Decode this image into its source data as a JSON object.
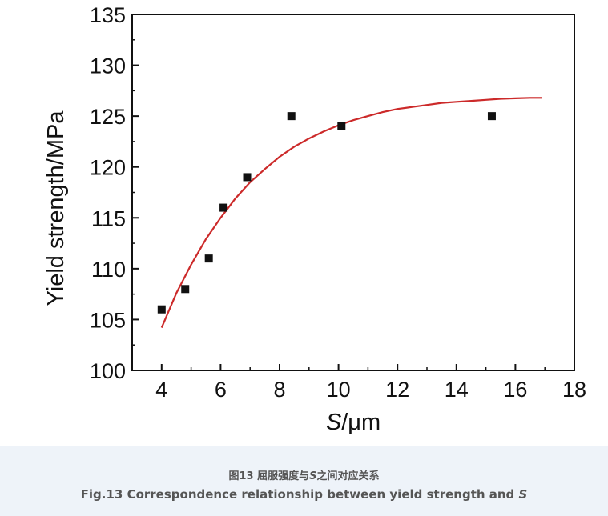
{
  "chart_data": {
    "type": "scatter",
    "xlabel_italic": "S",
    "xlabel_rest": "/μm",
    "ylabel": "Yield strength/MPa",
    "xlim": [
      3,
      18
    ],
    "ylim": [
      100,
      135
    ],
    "x_ticks": [
      "4",
      "6",
      "8",
      "10",
      "12",
      "14",
      "16",
      "18"
    ],
    "y_ticks": [
      "100",
      "105",
      "110",
      "115",
      "120",
      "125",
      "130",
      "135"
    ],
    "grid": false,
    "marker_color": "#111111",
    "fit_color": "#cc2a2a",
    "points": [
      {
        "x": 4.0,
        "y": 106
      },
      {
        "x": 4.8,
        "y": 108
      },
      {
        "x": 5.6,
        "y": 111
      },
      {
        "x": 6.1,
        "y": 116
      },
      {
        "x": 6.9,
        "y": 119
      },
      {
        "x": 8.4,
        "y": 125
      },
      {
        "x": 10.1,
        "y": 124
      },
      {
        "x": 15.2,
        "y": 125
      }
    ],
    "fit_curve": {
      "x": [
        4.0,
        4.5,
        5.0,
        5.5,
        6.0,
        6.5,
        7.0,
        7.5,
        8.0,
        8.5,
        9.0,
        9.5,
        10.0,
        10.5,
        11.0,
        11.5,
        12.0,
        12.5,
        13.0,
        13.5,
        14.0,
        14.5,
        15.0,
        15.5,
        16.0,
        16.5,
        16.9
      ],
      "y": [
        104.2,
        107.6,
        110.4,
        112.9,
        115.0,
        116.9,
        118.5,
        119.8,
        121.0,
        122.0,
        122.8,
        123.5,
        124.1,
        124.6,
        125.0,
        125.4,
        125.7,
        125.9,
        126.1,
        126.3,
        126.4,
        126.5,
        126.6,
        126.7,
        126.75,
        126.8,
        126.8
      ]
    }
  },
  "caption": {
    "cn_prefix": "图13 屈服强度与",
    "cn_italic": "S",
    "cn_suffix": "之间对应关系",
    "en_prefix": "Fig.13 Correspondence relationship between yield strength and ",
    "en_italic": "S"
  }
}
